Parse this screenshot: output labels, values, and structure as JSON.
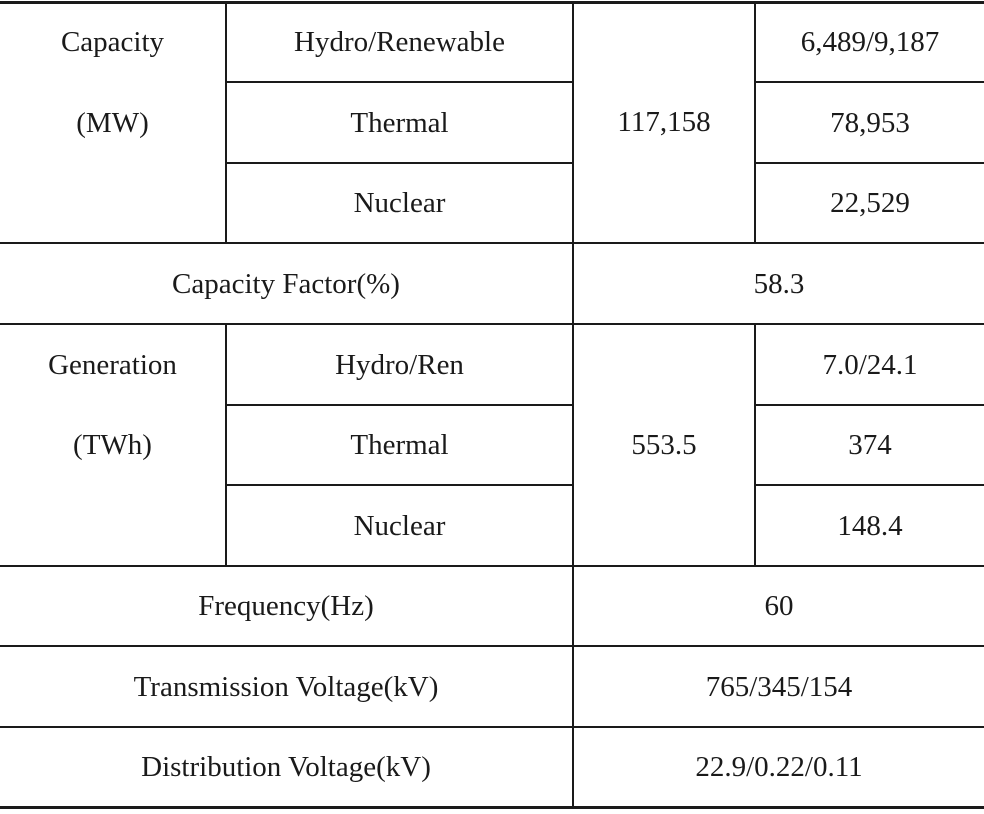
{
  "table": {
    "capacity": {
      "label_line1": "Capacity",
      "label_line2": "(MW)",
      "rows": [
        {
          "type": "Hydro/Renewable",
          "value": "6,489/9,187"
        },
        {
          "type": "Thermal",
          "value": "78,953"
        },
        {
          "type": "Nuclear",
          "value": "22,529"
        }
      ],
      "total": "117,158"
    },
    "capacity_factor": {
      "label": "Capacity Factor(%)",
      "value": "58.3"
    },
    "generation": {
      "label_line1": "Generation",
      "label_line2": "(TWh)",
      "rows": [
        {
          "type": "Hydro/Ren",
          "value": "7.0/24.1"
        },
        {
          "type": "Thermal",
          "value": "374"
        },
        {
          "type": "Nuclear",
          "value": "148.4"
        }
      ],
      "total": "553.5"
    },
    "frequency": {
      "label": "Frequency(Hz)",
      "value": "60"
    },
    "transmission_voltage": {
      "label": "Transmission Voltage(kV)",
      "value": "765/345/154"
    },
    "distribution_voltage": {
      "label": "Distribution Voltage(kV)",
      "value": "22.9/0.22/0.11"
    }
  }
}
